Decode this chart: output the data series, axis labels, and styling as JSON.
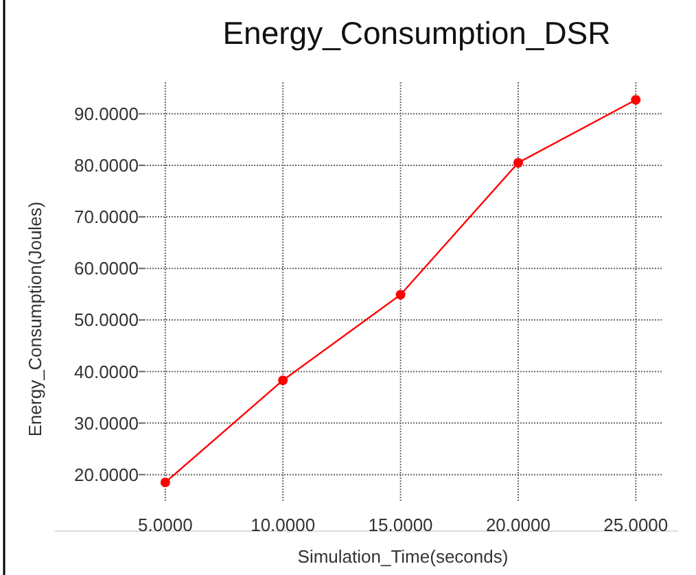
{
  "chart_data": {
    "type": "line",
    "title": "Energy_Consumption_DSR",
    "xlabel": "Simulation_Time(seconds)",
    "ylabel": "Energy_Consumption(Joules)",
    "x": [
      5,
      10,
      15,
      20,
      25
    ],
    "series": [
      {
        "color": "#ff0000",
        "values": [
          18.5,
          38.3,
          54.9,
          80.5,
          92.7
        ]
      }
    ],
    "xlim": [
      4.1,
      26.1
    ],
    "ylim": [
      14.9,
      96.1
    ],
    "xticks": [
      {
        "value": 5,
        "label": "5.0000"
      },
      {
        "value": 10,
        "label": "10.0000"
      },
      {
        "value": 15,
        "label": "15.0000"
      },
      {
        "value": 20,
        "label": "20.0000"
      },
      {
        "value": 25,
        "label": "25.0000"
      }
    ],
    "yticks": [
      {
        "value": 20,
        "label": "20.0000"
      },
      {
        "value": 30,
        "label": "30.0000"
      },
      {
        "value": 40,
        "label": "40.0000"
      },
      {
        "value": 50,
        "label": "50.0000"
      },
      {
        "value": 60,
        "label": "60.0000"
      },
      {
        "value": 70,
        "label": "70.0000"
      },
      {
        "value": 80,
        "label": "80.0000"
      },
      {
        "value": 90,
        "label": "90.0000"
      }
    ],
    "grid": true,
    "marker": "circle",
    "line_style": "solid"
  }
}
